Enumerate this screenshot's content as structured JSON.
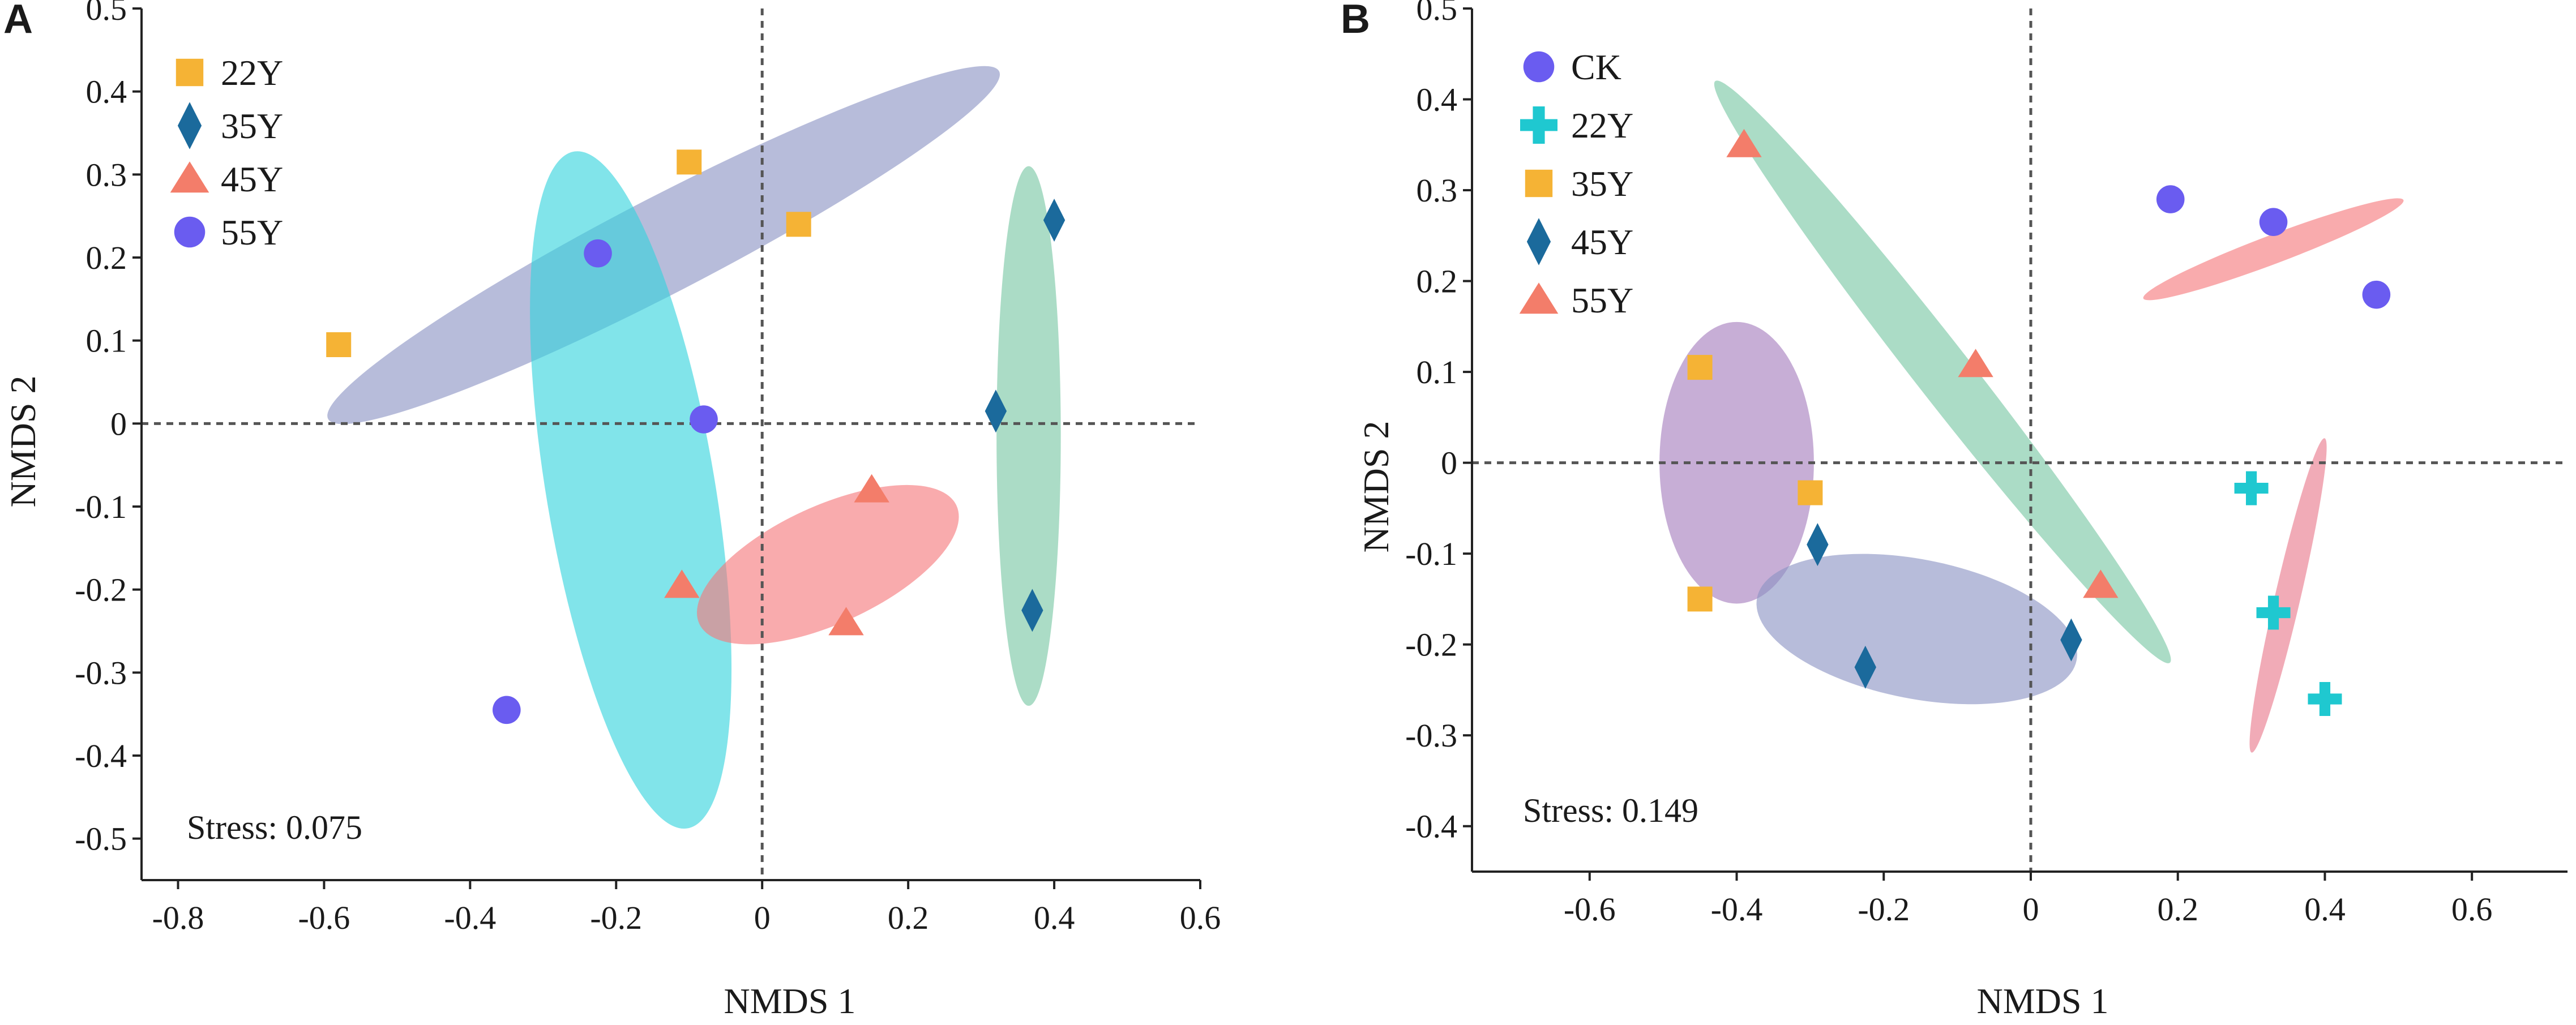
{
  "chart_data": [
    {
      "type": "scatter",
      "panel_label": "A",
      "xlabel": "NMDS 1",
      "ylabel": "NMDS 2",
      "xlim": [
        -0.85,
        0.6
      ],
      "ylim": [
        -0.55,
        0.5
      ],
      "xticks": [
        -0.8,
        -0.6,
        -0.4,
        -0.2,
        0,
        0.2,
        0.4,
        0.6
      ],
      "xtick_labels": [
        "-0.8",
        "-0.6",
        "-0.4",
        "-0.2",
        "0",
        "0.2",
        "0.4",
        "0.6"
      ],
      "yticks": [
        0.5,
        0.4,
        0.3,
        0.2,
        0.1,
        0,
        -0.1,
        -0.2,
        -0.3,
        -0.4,
        -0.5
      ],
      "ytick_labels": [
        "0.5",
        "0.4",
        "0.3",
        "0.2",
        "0.1",
        "0",
        "-0.1",
        "-0.2",
        "-0.3",
        "-0.4",
        "-0.5"
      ],
      "stress_text": "Stress: 0.075",
      "legend_position": "top-left",
      "series": [
        {
          "name": "22Y",
          "marker": "square",
          "color": "#f5b335",
          "x": [
            -0.58,
            -0.1,
            0.05
          ],
          "y": [
            0.095,
            0.315,
            0.24
          ]
        },
        {
          "name": "35Y",
          "marker": "diamond",
          "color": "#1b6a9c",
          "x": [
            0.32,
            0.4,
            0.37
          ],
          "y": [
            0.015,
            0.245,
            -0.225
          ]
        },
        {
          "name": "45Y",
          "marker": "triangle",
          "color": "#f37d6a",
          "x": [
            -0.11,
            0.15,
            0.115
          ],
          "y": [
            -0.195,
            -0.08,
            -0.24
          ]
        },
        {
          "name": "55Y",
          "marker": "circle",
          "color": "#6a5cf0",
          "x": [
            -0.225,
            -0.08,
            -0.35
          ],
          "y": [
            0.205,
            0.005,
            -0.345
          ]
        }
      ],
      "ellipses": [
        {
          "group": "22Y",
          "fill": "#8a93c4",
          "opacity": 0.62,
          "cx": -0.135,
          "cy": 0.215,
          "rx": 0.505,
          "ry": 0.059,
          "angle_deg": 24.5
        },
        {
          "group": "55Y",
          "fill": "#33d4dd",
          "opacity": 0.62,
          "cx": -0.18,
          "cy": -0.08,
          "rx": 0.415,
          "ry": 0.115,
          "angle_deg": 100.8
        },
        {
          "group": "45Y",
          "fill": "#f5777b",
          "opacity": 0.62,
          "cx": 0.09,
          "cy": -0.17,
          "rx": 0.19,
          "ry": 0.072,
          "angle_deg": 22
        },
        {
          "group": "35Y",
          "fill": "#78c6a3",
          "opacity": 0.62,
          "cx": 0.365,
          "cy": -0.015,
          "rx": 0.325,
          "ry": 0.044,
          "angle_deg": 90
        }
      ]
    },
    {
      "type": "scatter",
      "panel_label": "B",
      "xlabel": "NMDS 1",
      "ylabel": "NMDS 2",
      "xlim": [
        -0.76,
        0.73
      ],
      "ylim": [
        -0.45,
        0.5
      ],
      "xticks": [
        -0.6,
        -0.4,
        -0.2,
        0,
        0.2,
        0.4,
        0.6
      ],
      "xtick_labels": [
        "-0.6",
        "-0.4",
        "-0.2",
        "0",
        "0.2",
        "0.4",
        "0.6"
      ],
      "yticks": [
        0.5,
        0.4,
        0.3,
        0.2,
        0.1,
        0,
        -0.1,
        -0.2,
        -0.3,
        -0.4
      ],
      "ytick_labels": [
        "0.5",
        "0.4",
        "0.3",
        "0.2",
        "0.1",
        "0",
        "-0.1",
        "-0.2",
        "-0.3",
        "-0.4"
      ],
      "stress_text": "Stress: 0.149",
      "legend_position": "top-left",
      "series": [
        {
          "name": "CK",
          "marker": "circle",
          "color": "#6a5cf0",
          "x": [
            0.19,
            0.33,
            0.47
          ],
          "y": [
            0.29,
            0.265,
            0.185
          ]
        },
        {
          "name": "22Y",
          "marker": "cross",
          "color": "#1fc8d0",
          "x": [
            0.3,
            0.33,
            0.4
          ],
          "y": [
            -0.028,
            -0.165,
            -0.26
          ]
        },
        {
          "name": "35Y",
          "marker": "square",
          "color": "#f5b335",
          "x": [
            -0.45,
            -0.3,
            -0.45
          ],
          "y": [
            0.105,
            -0.033,
            -0.15
          ]
        },
        {
          "name": "45Y",
          "marker": "diamond",
          "color": "#1b6a9c",
          "x": [
            -0.29,
            -0.225,
            0.055
          ],
          "y": [
            -0.09,
            -0.225,
            -0.195
          ]
        },
        {
          "name": "55Y",
          "marker": "triangle",
          "color": "#f37d6a",
          "x": [
            -0.39,
            -0.075,
            0.095
          ],
          "y": [
            0.35,
            0.108,
            -0.135
          ]
        }
      ],
      "ellipses": [
        {
          "group": "CK",
          "fill": "#f5777b",
          "opacity": 0.62,
          "cx": 0.33,
          "cy": 0.235,
          "rx": 0.185,
          "ry": 0.016,
          "angle_deg": 17
        },
        {
          "group": "22Y",
          "fill": "#e8778a",
          "opacity": 0.62,
          "cx": 0.35,
          "cy": -0.146,
          "rx": 0.18,
          "ry": 0.017,
          "angle_deg": 74
        },
        {
          "group": "35Y",
          "fill": "#a47cbd",
          "opacity": 0.62,
          "cx": -0.4,
          "cy": 0.0,
          "rx": 0.105,
          "ry": 0.155,
          "angle_deg": 0
        },
        {
          "group": "45Y",
          "fill": "#8a93c4",
          "opacity": 0.62,
          "cx": -0.155,
          "cy": -0.183,
          "rx": 0.22,
          "ry": 0.077,
          "angle_deg": -9
        },
        {
          "group": "55Y",
          "fill": "#78c6a3",
          "opacity": 0.62,
          "cx": -0.12,
          "cy": 0.1,
          "rx": 0.445,
          "ry": 0.034,
          "angle_deg": -46
        }
      ]
    }
  ]
}
